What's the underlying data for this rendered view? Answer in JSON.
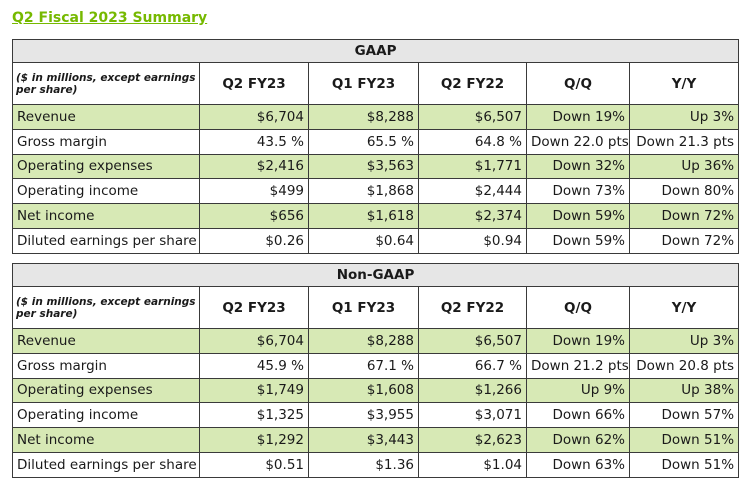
{
  "title": "Q2 Fiscal 2023 Summary",
  "tables": [
    {
      "section": "GAAP",
      "description": "($ in millions, except earnings per share)",
      "columns": [
        "Q2 FY23",
        "Q1 FY23",
        "Q2 FY22",
        "Q/Q",
        "Y/Y"
      ],
      "rows": [
        {
          "label": "Revenue",
          "values": [
            "$6,704",
            "$8,288",
            "$6,507",
            "Down 19%",
            "Up 3%"
          ]
        },
        {
          "label": "Gross margin",
          "values": [
            "43.5 %",
            "65.5 %",
            "64.8 %",
            "Down 22.0 pts",
            "Down 21.3 pts"
          ]
        },
        {
          "label": "Operating expenses",
          "values": [
            "$2,416",
            "$3,563",
            "$1,771",
            "Down 32%",
            "Up 36%"
          ]
        },
        {
          "label": "Operating income",
          "values": [
            "$499",
            "$1,868",
            "$2,444",
            "Down 73%",
            "Down 80%"
          ]
        },
        {
          "label": "Net income",
          "values": [
            "$656",
            "$1,618",
            "$2,374",
            "Down 59%",
            "Down 72%"
          ]
        },
        {
          "label": "Diluted earnings per share",
          "values": [
            "$0.26",
            "$0.64",
            "$0.94",
            "Down 59%",
            "Down 72%"
          ]
        }
      ]
    },
    {
      "section": "Non-GAAP",
      "description": "($ in millions, except earnings per share)",
      "columns": [
        "Q2 FY23",
        "Q1 FY23",
        "Q2 FY22",
        "Q/Q",
        "Y/Y"
      ],
      "rows": [
        {
          "label": "Revenue",
          "values": [
            "$6,704",
            "$8,288",
            "$6,507",
            "Down 19%",
            "Up 3%"
          ]
        },
        {
          "label": "Gross margin",
          "values": [
            "45.9 %",
            "67.1 %",
            "66.7 %",
            "Down 21.2 pts",
            "Down 20.8 pts"
          ]
        },
        {
          "label": "Operating expenses",
          "values": [
            "$1,749",
            "$1,608",
            "$1,266",
            "Up 9%",
            "Up 38%"
          ]
        },
        {
          "label": "Operating income",
          "values": [
            "$1,325",
            "$3,955",
            "$3,071",
            "Down 66%",
            "Down 57%"
          ]
        },
        {
          "label": "Net income",
          "values": [
            "$1,292",
            "$3,443",
            "$2,623",
            "Down 62%",
            "Down 51%"
          ]
        },
        {
          "label": "Diluted earnings per share",
          "values": [
            "$0.51",
            "$1.36",
            "$1.04",
            "Down 63%",
            "Down 51%"
          ]
        }
      ]
    }
  ],
  "colors": {
    "title": "#76b900",
    "row_shade": "#d7e9b5",
    "section_header": "#e6e6e6"
  }
}
